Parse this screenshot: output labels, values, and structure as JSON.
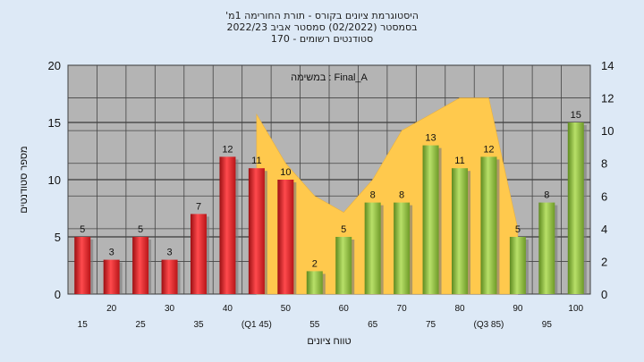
{
  "header": {
    "title_lines": [
      "'היסטוגרמת ציונים בקורס - תורת החורימה 1מ",
      "בסמסטר  (02/2022)  סמסטר אביב 2022/23",
      "סטודנטים רשומים - 170"
    ]
  },
  "chart_data": {
    "type": "bar",
    "xlabel": "טווח ציונים",
    "ylabel": "מספר סטודנטים",
    "annotation": "במשימה : Final_A",
    "ylim": [
      0,
      20
    ],
    "yticks": [
      0,
      5,
      10,
      15,
      20
    ],
    "y2lim": [
      0,
      14
    ],
    "y2ticks": [
      0,
      2,
      4,
      6,
      8,
      10,
      12,
      14
    ],
    "categories": [
      "15",
      "20",
      "25",
      "30",
      "35",
      "40",
      "45",
      "50",
      "55",
      "60",
      "65",
      "70",
      "75",
      "80",
      "85",
      "90",
      "95",
      "100"
    ],
    "tick_labels": [
      "15",
      "20",
      "25",
      "30",
      "35",
      "40",
      "(Q1 45)",
      "50",
      "55",
      "60",
      "65",
      "70",
      "75",
      "80",
      "(Q3 85)",
      "90",
      "95",
      "100"
    ],
    "values": [
      5,
      3,
      5,
      3,
      7,
      12,
      11,
      10,
      2,
      5,
      8,
      8,
      13,
      11,
      12,
      5,
      8,
      15
    ],
    "bar_colors": [
      "red",
      "red",
      "red",
      "red",
      "red",
      "red",
      "red",
      "red",
      "green",
      "green",
      "green",
      "green",
      "green",
      "green",
      "green",
      "green",
      "green",
      "green"
    ],
    "secondary_area": {
      "x": [
        "45",
        "50",
        "55",
        "60",
        "65",
        "70",
        "75",
        "80",
        "85",
        "90"
      ],
      "values": [
        11,
        8,
        6,
        5,
        7,
        10,
        11,
        12,
        12,
        4
      ]
    },
    "colors": {
      "red": "#e8262a",
      "green": "#8fc13c",
      "area": "#ffc94d",
      "plot_bg": "#b4b4b4",
      "background": "#dde9f6"
    }
  }
}
